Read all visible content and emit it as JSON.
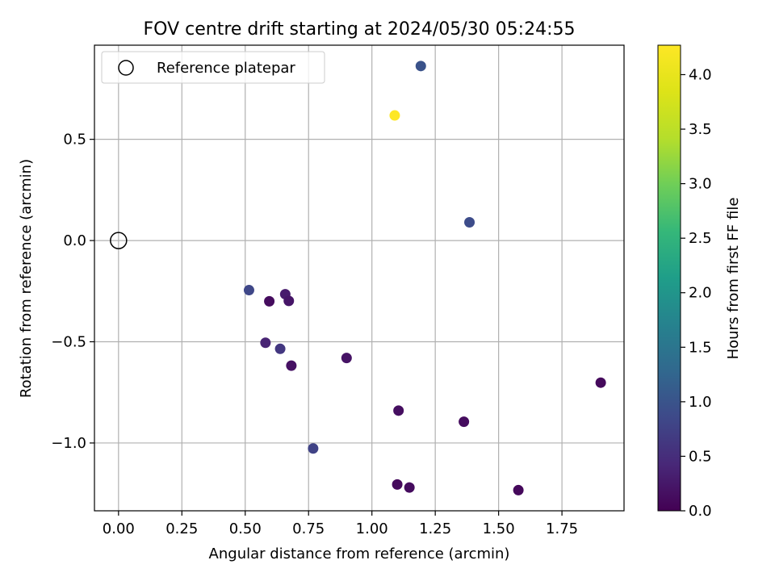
{
  "chart_data": {
    "type": "scatter",
    "title": "FOV centre drift starting at 2024/05/30 05:24:55",
    "xlabel": "Angular distance from reference (arcmin)",
    "ylabel": "Rotation from reference (arcmin)",
    "xlim": [
      -0.095,
      1.995
    ],
    "ylim": [
      -1.335,
      0.965
    ],
    "xticks": [
      0.0,
      0.25,
      0.5,
      0.75,
      1.0,
      1.25,
      1.5,
      1.75
    ],
    "xtick_labels": [
      "0.00",
      "0.25",
      "0.50",
      "0.75",
      "1.00",
      "1.25",
      "1.50",
      "1.75"
    ],
    "yticks": [
      -1.0,
      -0.5,
      0.0,
      0.5
    ],
    "ytick_labels": [
      "−1.0",
      "−0.5",
      "0.0",
      "0.5"
    ],
    "grid": true,
    "legend": {
      "position": "top-left",
      "entries": [
        "Reference platepar"
      ]
    },
    "reference_point": {
      "name": "Reference platepar",
      "x": 0.0,
      "y": 0.0
    },
    "colorbar": {
      "label": "Hours from first FF file",
      "colormap": "viridis",
      "range": [
        0.0,
        4.27
      ],
      "ticks": [
        0.0,
        0.5,
        1.0,
        1.5,
        2.0,
        2.5,
        3.0,
        3.5,
        4.0
      ],
      "tick_labels": [
        "0.0",
        "0.5",
        "1.0",
        "1.5",
        "2.0",
        "2.5",
        "3.0",
        "3.5",
        "4.0"
      ]
    },
    "points": [
      {
        "x": 0.515,
        "y": -0.245,
        "hours": 0.83
      },
      {
        "x": 0.595,
        "y": -0.3,
        "hours": 0.12
      },
      {
        "x": 0.658,
        "y": -0.265,
        "hours": 0.28
      },
      {
        "x": 0.672,
        "y": -0.298,
        "hours": 0.22
      },
      {
        "x": 0.58,
        "y": -0.505,
        "hours": 0.38
      },
      {
        "x": 0.638,
        "y": -0.535,
        "hours": 0.62
      },
      {
        "x": 0.682,
        "y": -0.618,
        "hours": 0.18
      },
      {
        "x": 0.768,
        "y": -1.027,
        "hours": 0.78
      },
      {
        "x": 0.9,
        "y": -0.58,
        "hours": 0.2
      },
      {
        "x": 1.09,
        "y": 0.618,
        "hours": 4.27
      },
      {
        "x": 1.193,
        "y": 0.862,
        "hours": 0.98
      },
      {
        "x": 1.105,
        "y": -0.84,
        "hours": 0.14
      },
      {
        "x": 1.1,
        "y": -1.205,
        "hours": 0.1
      },
      {
        "x": 1.148,
        "y": -1.22,
        "hours": 0.12
      },
      {
        "x": 1.363,
        "y": -0.895,
        "hours": 0.12
      },
      {
        "x": 1.385,
        "y": 0.09,
        "hours": 0.9
      },
      {
        "x": 1.578,
        "y": -1.233,
        "hours": 0.08
      },
      {
        "x": 1.903,
        "y": -0.702,
        "hours": 0.1
      }
    ]
  }
}
